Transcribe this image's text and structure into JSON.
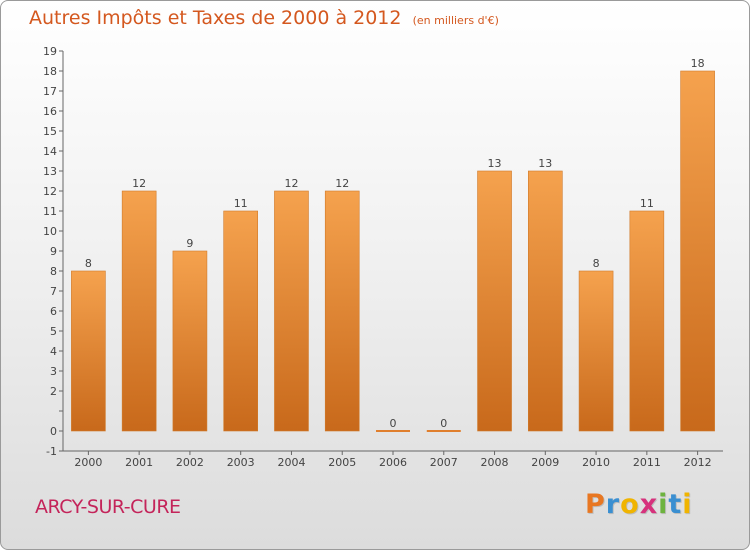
{
  "chart_data": {
    "type": "bar",
    "title": "Autres Impôts et Taxes de 2000 à 2012",
    "subtitle": "(en milliers d'€)",
    "categories": [
      "2000",
      "2001",
      "2002",
      "2003",
      "2004",
      "2005",
      "2006",
      "2007",
      "2008",
      "2009",
      "2010",
      "2011",
      "2012"
    ],
    "values": [
      8,
      12,
      9,
      11,
      12,
      12,
      0,
      0,
      13,
      13,
      8,
      11,
      18
    ],
    "value_labels": [
      "8",
      "12",
      "9",
      "11",
      "12",
      "12",
      "0",
      "0",
      "13",
      "13",
      "8",
      "11",
      "18"
    ],
    "ylim": [
      -1,
      19
    ],
    "y_ticks": [
      -1,
      0,
      1,
      2,
      3,
      4,
      5,
      6,
      7,
      8,
      9,
      10,
      11,
      12,
      13,
      14,
      15,
      16,
      17,
      18,
      19
    ],
    "y_tick_labels": [
      "-1",
      "0",
      "",
      "2",
      "3",
      "4",
      "5",
      "6",
      "7",
      "8",
      "9",
      "10",
      "11",
      "12",
      "13",
      "14",
      "15",
      "16",
      "17",
      "18",
      "19"
    ],
    "xlabel": "",
    "ylabel": "",
    "grid": false,
    "bar_color": "#f5a24e",
    "bar_color_dark": "#c8691b"
  },
  "footer": {
    "location": "ARCY-SUR-CURE",
    "brand_letters": [
      {
        "char": "P",
        "color": "#e87722"
      },
      {
        "char": "r",
        "color": "#3a8fd1"
      },
      {
        "char": "o",
        "color": "#f0b400"
      },
      {
        "char": "x",
        "color": "#d6317c"
      },
      {
        "char": "i",
        "color": "#6db33f"
      },
      {
        "char": "t",
        "color": "#3a8fd1"
      },
      {
        "char": "i",
        "color": "#f0b400"
      }
    ]
  },
  "colors": {
    "title": "#d4581f",
    "location": "#c4245a"
  }
}
